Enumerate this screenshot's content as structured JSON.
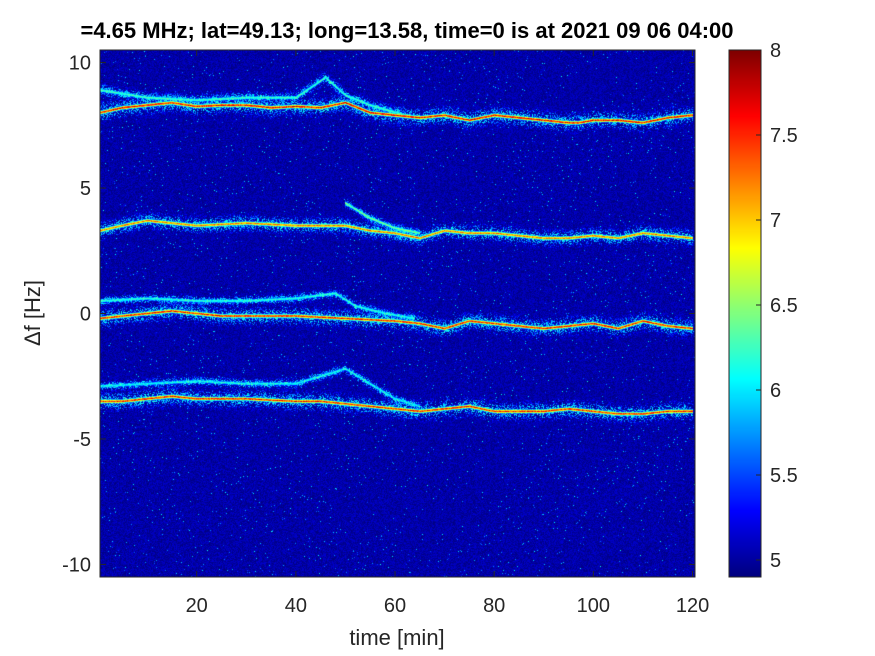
{
  "chart_data": {
    "type": "heatmap",
    "title": "=4.65 MHz;  lat=49.13; long=13.58, time=0 is at 2021 09 06 04:00",
    "xlabel": "time [min]",
    "ylabel": "Δf [Hz]",
    "xlim": [
      0.5,
      120.5
    ],
    "ylim": [
      -10.5,
      10.5
    ],
    "x_ticks": [
      20,
      40,
      60,
      80,
      100,
      120
    ],
    "x_tick_labels": [
      "20",
      "40",
      "60",
      "80",
      "100",
      "120"
    ],
    "y_ticks": [
      10,
      5,
      0,
      -5,
      -10
    ],
    "y_tick_labels": [
      "10",
      "5",
      "0",
      "-5",
      "-10"
    ],
    "grid": false,
    "colormap": "jet",
    "colorbar": {
      "range": [
        4.9,
        8
      ],
      "ticks": [
        5,
        5.5,
        6,
        6.5,
        7,
        7.5,
        8
      ],
      "tick_labels": [
        "5",
        "5.5",
        "6",
        "6.5",
        "7",
        "7.5",
        "8"
      ],
      "placement": "right"
    },
    "background_level": 4.9,
    "traces": [
      {
        "points": [
          [
            0.5,
            8.0
          ],
          [
            5,
            8.2
          ],
          [
            10,
            8.3
          ],
          [
            15,
            8.4
          ],
          [
            20,
            8.25
          ],
          [
            25,
            8.3
          ],
          [
            30,
            8.3
          ],
          [
            35,
            8.2
          ],
          [
            40,
            8.25
          ],
          [
            45,
            8.2
          ],
          [
            50,
            8.4
          ],
          [
            55,
            8.0
          ],
          [
            60,
            7.9
          ],
          [
            65,
            7.8
          ],
          [
            70,
            7.9
          ],
          [
            75,
            7.7
          ],
          [
            80,
            7.9
          ],
          [
            85,
            7.8
          ],
          [
            90,
            7.7
          ],
          [
            95,
            7.6
          ],
          [
            97,
            7.6
          ],
          [
            100,
            7.7
          ],
          [
            105,
            7.7
          ],
          [
            110,
            7.6
          ],
          [
            115,
            7.8
          ],
          [
            120,
            7.9
          ]
        ],
        "peak": 7.9,
        "spread": 0.55
      },
      {
        "points": [
          [
            0.5,
            8.9
          ],
          [
            10,
            8.6
          ],
          [
            20,
            8.5
          ],
          [
            30,
            8.6
          ],
          [
            40,
            8.6
          ],
          [
            46,
            9.4
          ],
          [
            50,
            8.7
          ],
          [
            55,
            8.3
          ],
          [
            62,
            7.9
          ]
        ],
        "peak": 6.4,
        "spread": 0.35
      },
      {
        "points": [
          [
            0.5,
            3.3
          ],
          [
            5,
            3.5
          ],
          [
            10,
            3.7
          ],
          [
            15,
            3.6
          ],
          [
            20,
            3.5
          ],
          [
            30,
            3.6
          ],
          [
            40,
            3.5
          ],
          [
            50,
            3.5
          ],
          [
            55,
            3.3
          ],
          [
            60,
            3.2
          ],
          [
            65,
            3.0
          ],
          [
            70,
            3.3
          ],
          [
            75,
            3.2
          ],
          [
            80,
            3.2
          ],
          [
            85,
            3.1
          ],
          [
            90,
            3.0
          ],
          [
            95,
            3.0
          ],
          [
            100,
            3.1
          ],
          [
            105,
            3.0
          ],
          [
            110,
            3.2
          ],
          [
            115,
            3.1
          ],
          [
            120,
            3.0
          ]
        ],
        "peak": 7.5,
        "spread": 0.5
      },
      {
        "points": [
          [
            50,
            4.4
          ],
          [
            55,
            3.8
          ],
          [
            60,
            3.4
          ],
          [
            65,
            3.2
          ]
        ],
        "peak": 6.6,
        "spread": 0.3
      },
      {
        "points": [
          [
            0.5,
            -0.2
          ],
          [
            5,
            -0.1
          ],
          [
            10,
            0.0
          ],
          [
            15,
            0.1
          ],
          [
            20,
            0.0
          ],
          [
            25,
            -0.1
          ],
          [
            30,
            -0.1
          ],
          [
            40,
            -0.1
          ],
          [
            45,
            -0.15
          ],
          [
            50,
            -0.2
          ],
          [
            55,
            -0.25
          ],
          [
            60,
            -0.3
          ],
          [
            65,
            -0.4
          ],
          [
            70,
            -0.6
          ],
          [
            75,
            -0.3
          ],
          [
            80,
            -0.4
          ],
          [
            85,
            -0.5
          ],
          [
            90,
            -0.6
          ],
          [
            95,
            -0.5
          ],
          [
            100,
            -0.4
          ],
          [
            105,
            -0.6
          ],
          [
            110,
            -0.3
          ],
          [
            115,
            -0.5
          ],
          [
            120,
            -0.6
          ]
        ],
        "peak": 7.8,
        "spread": 0.55
      },
      {
        "points": [
          [
            0.5,
            0.5
          ],
          [
            10,
            0.6
          ],
          [
            20,
            0.5
          ],
          [
            30,
            0.5
          ],
          [
            40,
            0.6
          ],
          [
            48,
            0.8
          ],
          [
            52,
            0.3
          ],
          [
            58,
            0.0
          ],
          [
            64,
            -0.2
          ]
        ],
        "peak": 6.3,
        "spread": 0.3
      },
      {
        "points": [
          [
            0.5,
            -3.5
          ],
          [
            5,
            -3.5
          ],
          [
            10,
            -3.4
          ],
          [
            15,
            -3.3
          ],
          [
            20,
            -3.4
          ],
          [
            30,
            -3.4
          ],
          [
            40,
            -3.5
          ],
          [
            45,
            -3.5
          ],
          [
            50,
            -3.6
          ],
          [
            55,
            -3.7
          ],
          [
            60,
            -3.8
          ],
          [
            65,
            -3.9
          ],
          [
            70,
            -3.8
          ],
          [
            75,
            -3.7
          ],
          [
            80,
            -3.9
          ],
          [
            90,
            -3.9
          ],
          [
            95,
            -3.8
          ],
          [
            100,
            -3.9
          ],
          [
            105,
            -4.0
          ],
          [
            110,
            -4.0
          ],
          [
            115,
            -3.9
          ],
          [
            120,
            -3.9
          ]
        ],
        "peak": 7.8,
        "spread": 0.55
      },
      {
        "points": [
          [
            0.5,
            -2.9
          ],
          [
            10,
            -2.8
          ],
          [
            20,
            -2.7
          ],
          [
            30,
            -2.8
          ],
          [
            40,
            -2.8
          ],
          [
            50,
            -2.2
          ],
          [
            55,
            -2.8
          ],
          [
            60,
            -3.4
          ],
          [
            65,
            -3.7
          ]
        ],
        "peak": 6.2,
        "spread": 0.3
      }
    ]
  }
}
